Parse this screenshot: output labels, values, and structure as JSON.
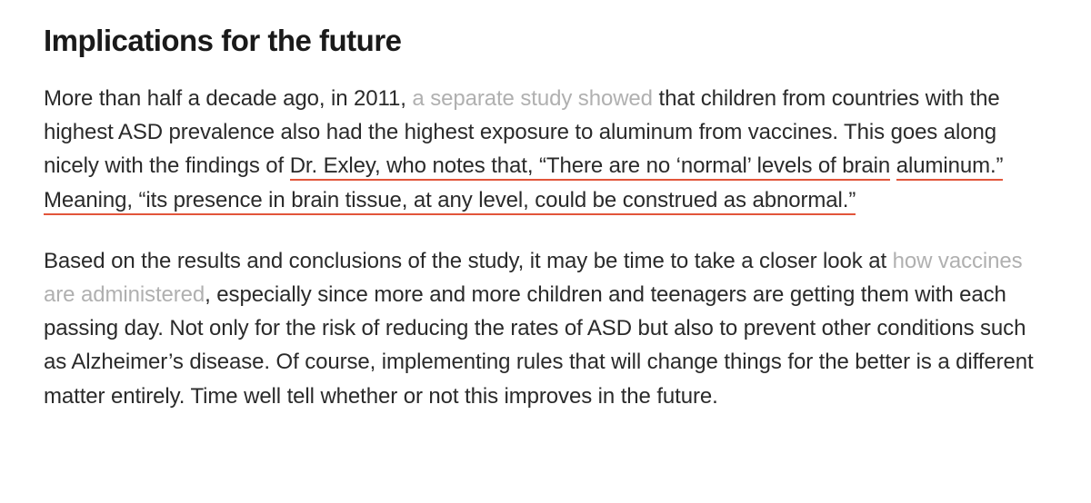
{
  "heading": "Implications for the future",
  "underline_color": "#e2553a",
  "link_color": "#b0b0b0",
  "text_color": "#2a2a2a",
  "heading_color": "#1a1a1a",
  "heading_fontsize": 33,
  "body_fontsize": 24,
  "p1": {
    "t1": "More than half a decade ago, in 2011, ",
    "link1": "a separate study showed",
    "t2": " that children from countries with the highest ASD prevalence also had the highest exposure to aluminum from vaccines. This goes along nicely with the findings of ",
    "u1": "Dr. Exley, who notes that, “There are no ‘normal’ levels of brain",
    "t3": " ",
    "u2": "aluminum.” Meaning, “its presence in brain tissue, at any level, could be construed as abnormal.”",
    "t4": ""
  },
  "p2": {
    "t1": "Based on the results and conclusions of the study, it may be time to take a closer look at ",
    "link1": "how vaccines are administered",
    "t2": ", especially since more and more children and teenagers are getting them with each passing day. Not only for the risk of reducing the rates of ASD but also to prevent other conditions such as Alzheimer’s disease. Of course, implementing rules that will change things for the better is a different matter entirely. Time well tell whether or not this improves in the future."
  }
}
